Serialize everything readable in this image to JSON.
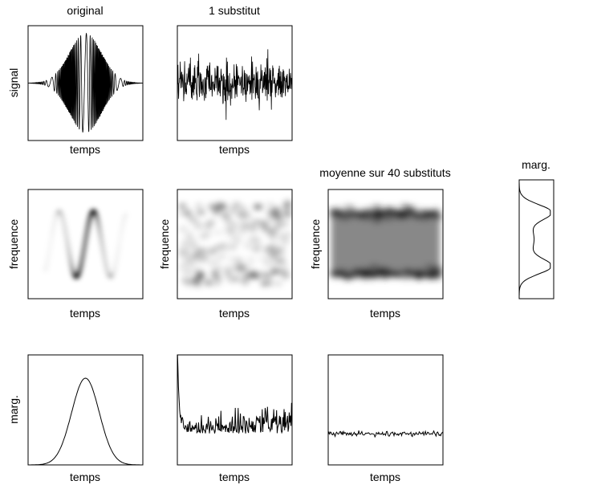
{
  "columns": [
    {
      "title": "original"
    },
    {
      "title": "1 substitut"
    },
    {
      "title": "moyenne sur 40 substituts"
    },
    {
      "title": "marg."
    }
  ],
  "rows": [
    {
      "ylabel": "signal",
      "xlabels": [
        "temps",
        "temps"
      ]
    },
    {
      "ylabel": "frequence",
      "ylabels_inner": [
        "frequence",
        "frequence"
      ],
      "xlabels": [
        "temps",
        "temps",
        "temps"
      ]
    },
    {
      "ylabel": "marg.",
      "xlabels": [
        "temps",
        "temps",
        "temps"
      ]
    }
  ]
}
